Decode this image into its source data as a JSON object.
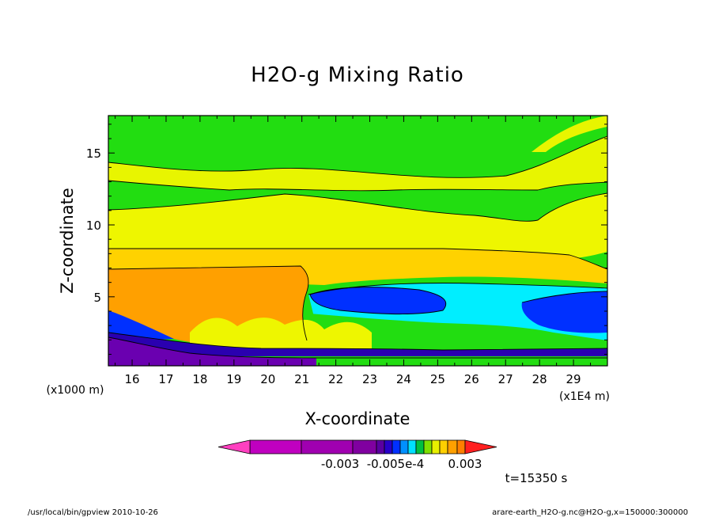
{
  "chart_data": {
    "type": "heatmap",
    "title": "H2O-g Mixing Ratio",
    "xlabel": "X-coordinate",
    "ylabel": "Z-coordinate",
    "x_unit_left": "(x1000 m)",
    "x_unit_right": "(x1E4 m)",
    "x_ticks": [
      "16",
      "17",
      "18",
      "19",
      "20",
      "21",
      "22",
      "23",
      "24",
      "25",
      "26",
      "27",
      "28",
      "29"
    ],
    "y_ticks": [
      "5",
      "10",
      "15"
    ],
    "xlim": [
      15.3,
      30.0
    ],
    "ylim": [
      0.2,
      17.6
    ],
    "colorbar": {
      "labels": [
        "-0.003",
        "-0.005e-4",
        "0.003"
      ],
      "colors": [
        "#c000c0",
        "#a000b0",
        "#8000a0",
        "#5a00a0",
        "#2800c8",
        "#0030ff",
        "#0090ff",
        "#00e0ff",
        "#00c040",
        "#80e000",
        "#e8f000",
        "#ffd000",
        "#ffa000",
        "#ff8000"
      ]
    },
    "annotation": "t=15350 s",
    "layers": [
      {
        "name": "upper-green-top",
        "color": "#22dd11"
      },
      {
        "name": "upper-yellow",
        "color": "#e8f500"
      },
      {
        "name": "upper-green",
        "color": "#22dd11"
      },
      {
        "name": "mid-yellow",
        "color": "#eef600"
      },
      {
        "name": "yellow-orange",
        "color": "#ffd200"
      },
      {
        "name": "orange",
        "color": "#ffa000"
      },
      {
        "name": "cyan",
        "color": "#00eeff"
      },
      {
        "name": "blue",
        "color": "#0030ff"
      },
      {
        "name": "dark-blue",
        "color": "#2a00b0"
      },
      {
        "name": "purple",
        "color": "#6a00b0"
      }
    ]
  },
  "footer": {
    "left": "/usr/local/bin/gpview  2010-10-26",
    "right": "arare-earth_H2O-g.nc@H2O-g,x=150000:300000"
  }
}
